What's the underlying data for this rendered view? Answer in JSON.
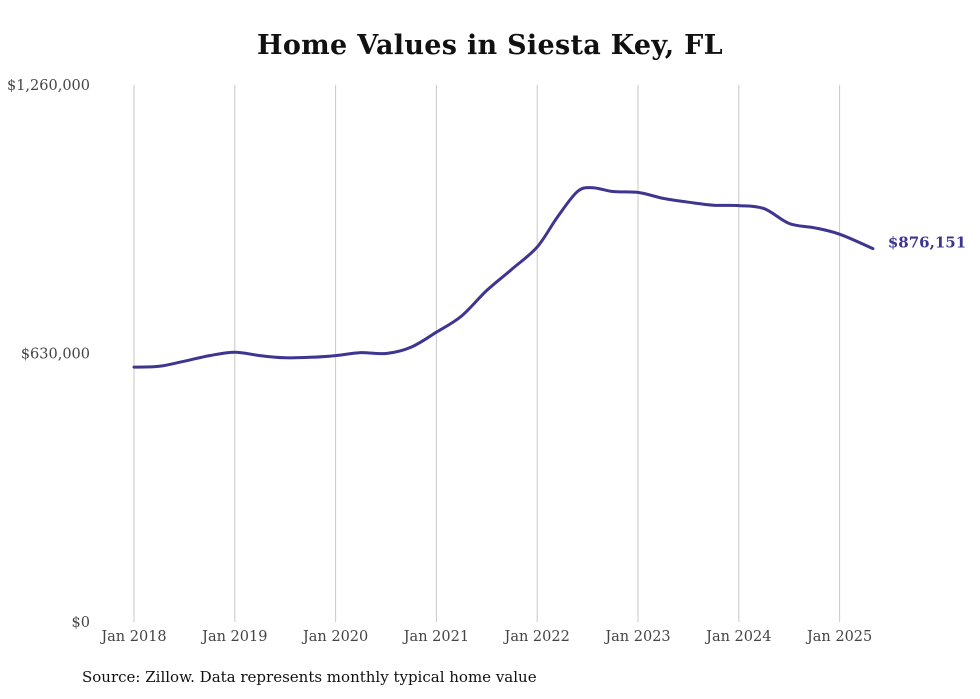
{
  "colors": {
    "series": "#3d3590",
    "grid": "#c8c8c8"
  },
  "source_note": "Source: Zillow. Data represents monthly typical home value",
  "chart_data": {
    "type": "line",
    "title": "Home Values in Siesta Key, FL",
    "xlabel": "",
    "ylabel": "",
    "ylim": [
      0,
      1260000
    ],
    "yticks": [
      {
        "value": 0,
        "label": "$0"
      },
      {
        "value": 630000,
        "label": "$630,000"
      },
      {
        "value": 1260000,
        "label": "$1,260,000"
      }
    ],
    "xticks": [
      {
        "value": 2018,
        "label": "Jan 2018"
      },
      {
        "value": 2019,
        "label": "Jan 2019"
      },
      {
        "value": 2020,
        "label": "Jan 2020"
      },
      {
        "value": 2021,
        "label": "Jan 2021"
      },
      {
        "value": 2022,
        "label": "Jan 2022"
      },
      {
        "value": 2023,
        "label": "Jan 2023"
      },
      {
        "value": 2024,
        "label": "Jan 2024"
      },
      {
        "value": 2025,
        "label": "Jan 2025"
      }
    ],
    "grid": "vertical",
    "end_label": "$876,151",
    "series": [
      {
        "x": [
          2018.0,
          2018.25,
          2018.5,
          2018.75,
          2019.0,
          2019.25,
          2019.5,
          2019.75,
          2020.0,
          2020.25,
          2020.5,
          2020.75,
          2021.0,
          2021.25,
          2021.5,
          2021.75,
          2022.0,
          2022.2,
          2022.4,
          2022.55,
          2022.75,
          2023.0,
          2023.25,
          2023.5,
          2023.75,
          2024.0,
          2024.25,
          2024.5,
          2024.75,
          2025.0,
          2025.33
        ],
        "values": [
          598000,
          600000,
          612000,
          625000,
          633000,
          625000,
          620000,
          621000,
          625000,
          632000,
          630000,
          645000,
          680000,
          718000,
          778000,
          828000,
          880000,
          950000,
          1010000,
          1019000,
          1010000,
          1008000,
          994000,
          985000,
          978000,
          977000,
          970000,
          935000,
          925000,
          910000,
          876151
        ]
      }
    ]
  }
}
